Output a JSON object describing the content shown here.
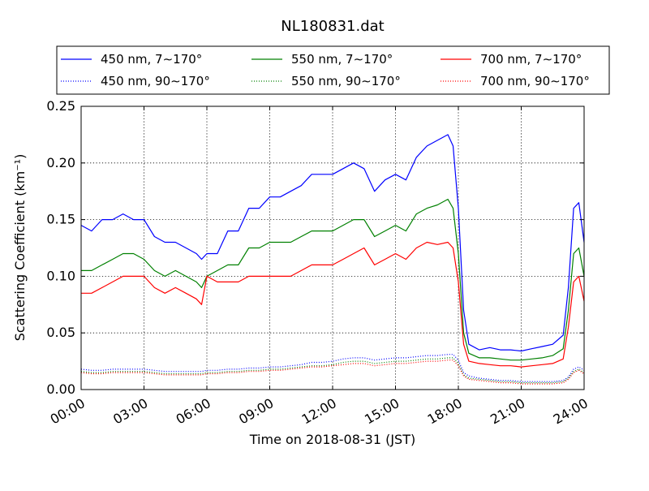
{
  "chart_data": {
    "type": "line",
    "title": "NL180831.dat",
    "xlabel": "Time on 2018-08-31 (JST)",
    "ylabel": "Scattering Coefficient (km⁻¹)",
    "xlim": [
      0,
      24
    ],
    "ylim": [
      0,
      0.25
    ],
    "x_ticks": [
      0,
      3,
      6,
      9,
      12,
      15,
      18,
      21,
      24
    ],
    "x_tick_labels": [
      "00:00",
      "03:00",
      "06:00",
      "09:00",
      "12:00",
      "15:00",
      "18:00",
      "21:00",
      "24:00"
    ],
    "y_ticks": [
      0,
      0.05,
      0.1,
      0.15,
      0.2,
      0.25
    ],
    "y_tick_labels": [
      "0.00",
      "0.05",
      "0.10",
      "0.15",
      "0.20",
      "0.25"
    ],
    "grid": true,
    "legend_position": "top (above plot)",
    "legend_columns": 3,
    "x": [
      0.0,
      0.5,
      1.0,
      1.5,
      2.0,
      2.5,
      3.0,
      3.5,
      4.0,
      4.5,
      5.0,
      5.5,
      5.75,
      6.0,
      6.5,
      7.0,
      7.5,
      8.0,
      8.5,
      9.0,
      9.5,
      10.0,
      10.5,
      11.0,
      11.5,
      12.0,
      12.5,
      13.0,
      13.5,
      14.0,
      14.5,
      15.0,
      15.5,
      16.0,
      16.5,
      17.0,
      17.5,
      17.75,
      18.0,
      18.25,
      18.5,
      19.0,
      19.5,
      20.0,
      20.5,
      21.0,
      21.5,
      22.0,
      22.5,
      23.0,
      23.25,
      23.5,
      23.75,
      24.0
    ],
    "series": [
      {
        "name": "450 nm, 7∼170°",
        "color": "#0000ff",
        "style": "solid",
        "values": [
          0.145,
          0.14,
          0.15,
          0.15,
          0.155,
          0.15,
          0.15,
          0.135,
          0.13,
          0.13,
          0.125,
          0.12,
          0.115,
          0.12,
          0.12,
          0.14,
          0.14,
          0.16,
          0.16,
          0.17,
          0.17,
          0.175,
          0.18,
          0.19,
          0.19,
          0.19,
          0.195,
          0.2,
          0.195,
          0.175,
          0.185,
          0.19,
          0.185,
          0.205,
          0.215,
          0.22,
          0.225,
          0.215,
          0.16,
          0.07,
          0.04,
          0.035,
          0.037,
          0.035,
          0.035,
          0.034,
          0.036,
          0.038,
          0.04,
          0.048,
          0.09,
          0.16,
          0.165,
          0.13
        ]
      },
      {
        "name": "450 nm, 90∼170°",
        "color": "#0000ff",
        "style": "dotted",
        "values": [
          0.018,
          0.017,
          0.017,
          0.018,
          0.018,
          0.018,
          0.018,
          0.017,
          0.016,
          0.016,
          0.016,
          0.016,
          0.016,
          0.017,
          0.017,
          0.018,
          0.018,
          0.019,
          0.019,
          0.02,
          0.02,
          0.021,
          0.022,
          0.024,
          0.024,
          0.025,
          0.027,
          0.028,
          0.028,
          0.026,
          0.027,
          0.028,
          0.028,
          0.029,
          0.03,
          0.03,
          0.031,
          0.031,
          0.026,
          0.015,
          0.012,
          0.01,
          0.009,
          0.008,
          0.008,
          0.007,
          0.007,
          0.007,
          0.007,
          0.008,
          0.011,
          0.018,
          0.02,
          0.017
        ]
      },
      {
        "name": "550 nm, 7∼170°",
        "color": "#008000",
        "style": "solid",
        "values": [
          0.105,
          0.105,
          0.11,
          0.115,
          0.12,
          0.12,
          0.115,
          0.105,
          0.1,
          0.105,
          0.1,
          0.095,
          0.09,
          0.1,
          0.105,
          0.11,
          0.11,
          0.125,
          0.125,
          0.13,
          0.13,
          0.13,
          0.135,
          0.14,
          0.14,
          0.14,
          0.145,
          0.15,
          0.15,
          0.135,
          0.14,
          0.145,
          0.14,
          0.155,
          0.16,
          0.163,
          0.168,
          0.16,
          0.12,
          0.05,
          0.032,
          0.028,
          0.028,
          0.027,
          0.026,
          0.026,
          0.027,
          0.028,
          0.03,
          0.036,
          0.07,
          0.12,
          0.125,
          0.1
        ]
      },
      {
        "name": "550 nm, 90∼170°",
        "color": "#008000",
        "style": "dotted",
        "values": [
          0.016,
          0.015,
          0.015,
          0.016,
          0.016,
          0.016,
          0.016,
          0.015,
          0.014,
          0.014,
          0.014,
          0.014,
          0.014,
          0.015,
          0.015,
          0.016,
          0.016,
          0.017,
          0.017,
          0.018,
          0.018,
          0.019,
          0.02,
          0.021,
          0.021,
          0.022,
          0.024,
          0.025,
          0.025,
          0.023,
          0.024,
          0.025,
          0.025,
          0.026,
          0.027,
          0.027,
          0.028,
          0.028,
          0.023,
          0.013,
          0.01,
          0.009,
          0.008,
          0.007,
          0.007,
          0.006,
          0.006,
          0.006,
          0.006,
          0.007,
          0.01,
          0.016,
          0.018,
          0.015
        ]
      },
      {
        "name": "700 nm, 7∼170°",
        "color": "#ff0000",
        "style": "solid",
        "values": [
          0.085,
          0.085,
          0.09,
          0.095,
          0.1,
          0.1,
          0.1,
          0.09,
          0.085,
          0.09,
          0.085,
          0.08,
          0.075,
          0.1,
          0.095,
          0.095,
          0.095,
          0.1,
          0.1,
          0.1,
          0.1,
          0.1,
          0.105,
          0.11,
          0.11,
          0.11,
          0.115,
          0.12,
          0.125,
          0.11,
          0.115,
          0.12,
          0.115,
          0.125,
          0.13,
          0.128,
          0.13,
          0.125,
          0.095,
          0.04,
          0.025,
          0.023,
          0.022,
          0.021,
          0.021,
          0.02,
          0.021,
          0.022,
          0.023,
          0.027,
          0.055,
          0.095,
          0.1,
          0.078
        ]
      },
      {
        "name": "700 nm, 90∼170°",
        "color": "#ff0000",
        "style": "dotted",
        "values": [
          0.015,
          0.014,
          0.014,
          0.015,
          0.015,
          0.015,
          0.015,
          0.014,
          0.013,
          0.013,
          0.013,
          0.013,
          0.013,
          0.014,
          0.014,
          0.015,
          0.015,
          0.016,
          0.016,
          0.017,
          0.017,
          0.018,
          0.019,
          0.02,
          0.02,
          0.021,
          0.022,
          0.023,
          0.023,
          0.021,
          0.022,
          0.023,
          0.023,
          0.024,
          0.025,
          0.025,
          0.026,
          0.026,
          0.021,
          0.012,
          0.009,
          0.008,
          0.007,
          0.006,
          0.006,
          0.005,
          0.005,
          0.005,
          0.005,
          0.006,
          0.009,
          0.015,
          0.017,
          0.014
        ]
      }
    ]
  }
}
